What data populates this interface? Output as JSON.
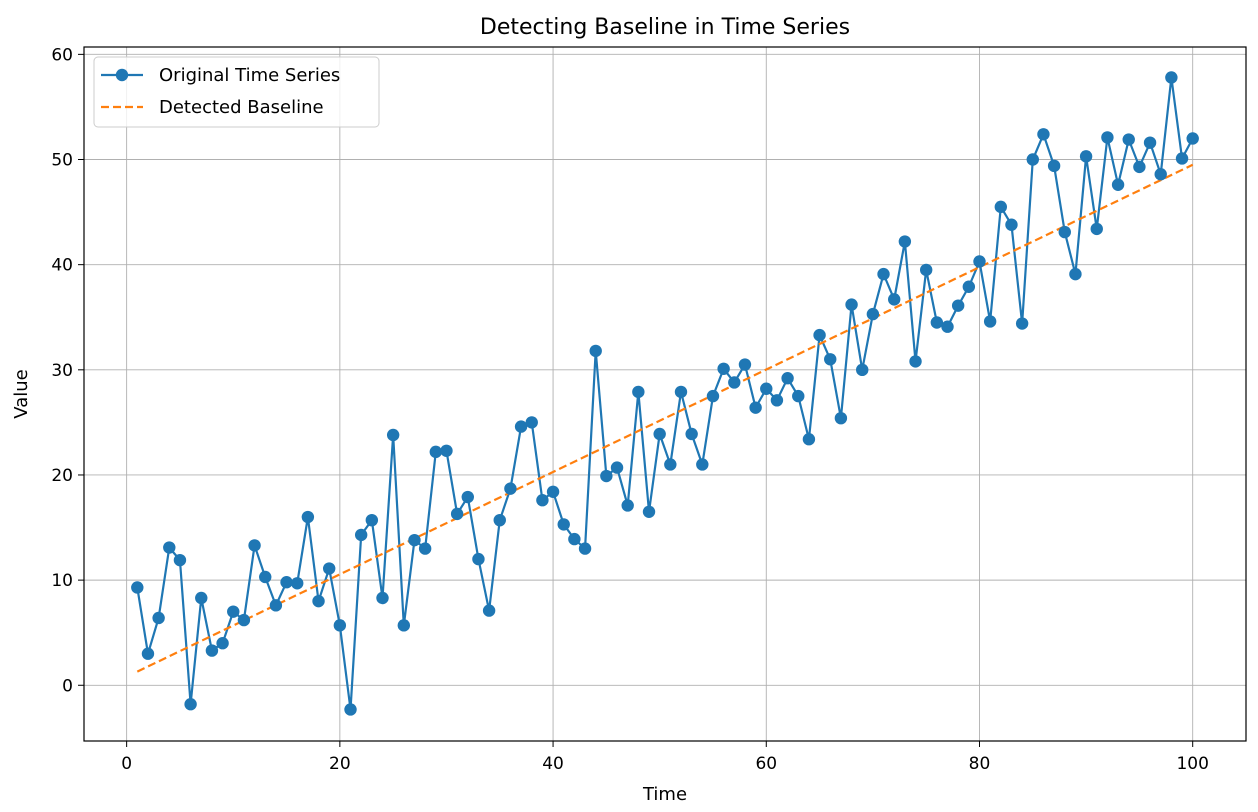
{
  "chart_data": {
    "type": "line",
    "title": "Detecting Baseline in Time Series",
    "xlabel": "Time",
    "ylabel": "Value",
    "xlim": [
      -4,
      105
    ],
    "ylim": [
      -5.3,
      60.7
    ],
    "xticks": [
      0,
      20,
      40,
      60,
      80,
      100
    ],
    "yticks": [
      0,
      10,
      20,
      30,
      40,
      50,
      60
    ],
    "grid": true,
    "legend_position": "top-left",
    "series": [
      {
        "name": "Original Time Series",
        "style": "line-marker",
        "color": "#1f77b4",
        "x": [
          1,
          2,
          3,
          4,
          5,
          6,
          7,
          8,
          9,
          10,
          11,
          12,
          13,
          14,
          15,
          16,
          17,
          18,
          19,
          20,
          21,
          22,
          23,
          24,
          25,
          26,
          27,
          28,
          29,
          30,
          31,
          32,
          33,
          34,
          35,
          36,
          37,
          38,
          39,
          40,
          41,
          42,
          43,
          44,
          45,
          46,
          47,
          48,
          49,
          50,
          51,
          52,
          53,
          54,
          55,
          56,
          57,
          58,
          59,
          60,
          61,
          62,
          63,
          64,
          65,
          66,
          67,
          68,
          69,
          70,
          71,
          72,
          73,
          74,
          75,
          76,
          77,
          78,
          79,
          80,
          81,
          82,
          83,
          84,
          85,
          86,
          87,
          88,
          89,
          90,
          91,
          92,
          93,
          94,
          95,
          96,
          97,
          98,
          99,
          100
        ],
        "y": [
          9.3,
          3.0,
          6.4,
          13.1,
          11.9,
          -1.8,
          8.3,
          3.3,
          4.0,
          7.0,
          6.2,
          13.3,
          10.3,
          7.6,
          9.8,
          9.7,
          16.0,
          8.0,
          11.1,
          5.7,
          -2.3,
          14.3,
          15.7,
          8.3,
          23.8,
          5.7,
          13.8,
          13.0,
          22.2,
          22.3,
          16.3,
          17.9,
          12.0,
          7.1,
          15.7,
          18.7,
          24.6,
          25.0,
          17.6,
          18.4,
          15.3,
          13.9,
          13.0,
          31.8,
          19.9,
          20.7,
          17.1,
          27.9,
          16.5,
          23.9,
          21.0,
          27.9,
          23.9,
          21.0,
          27.5,
          30.1,
          28.8,
          30.5,
          26.4,
          28.2,
          27.1,
          29.2,
          27.5,
          23.4,
          33.3,
          31.0,
          25.4,
          36.2,
          30.0,
          35.3,
          39.1,
          36.7,
          42.2,
          30.8,
          39.5,
          34.5,
          34.1,
          36.1,
          37.9,
          40.3,
          34.6,
          45.5,
          43.8,
          34.4,
          50.0,
          52.4,
          49.4,
          43.1,
          39.1,
          50.3,
          43.4,
          52.1,
          47.6,
          51.9,
          49.3,
          51.6,
          48.6,
          57.8,
          50.1,
          52.0
        ]
      },
      {
        "name": "Detected Baseline",
        "style": "dashed",
        "color": "#ff7f0e",
        "x": [
          1,
          100
        ],
        "y": [
          1.3,
          49.5
        ]
      }
    ]
  }
}
